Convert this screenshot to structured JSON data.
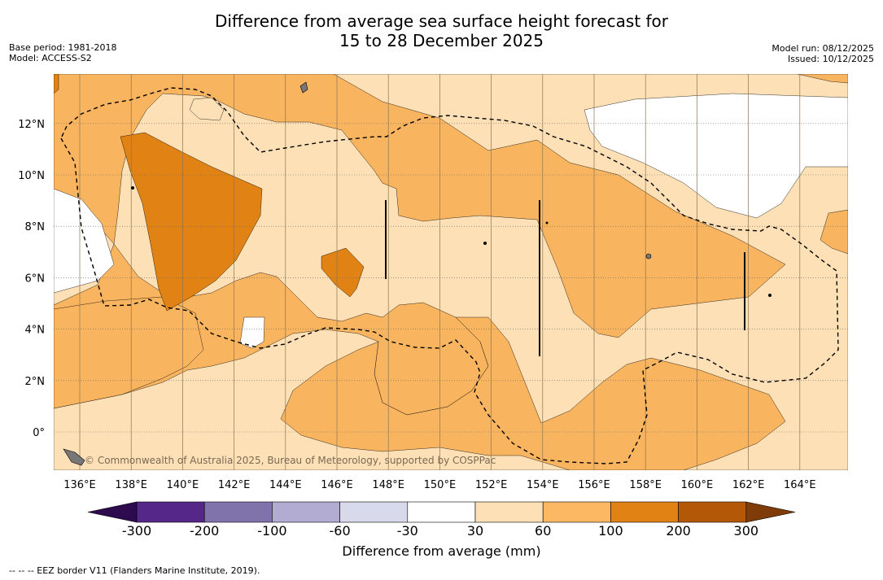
{
  "title_line1": "Difference from average sea surface height forecast for",
  "title_line2": "15 to 28 December 2025",
  "base_period": "Base period: 1981-2018",
  "model": "Model: ACCESS-S2",
  "model_run": "Model run: 08/12/2025",
  "issued": "Issued: 10/12/2025",
  "copyright": "© Commonwealth of Australia 2025, Bureau of Meteorology, supported by COSPPac",
  "lon_labels": [
    "136°E",
    "138°E",
    "140°E",
    "142°E",
    "144°E",
    "146°E",
    "148°E",
    "150°E",
    "152°E",
    "154°E",
    "156°E",
    "158°E",
    "160°E",
    "162°E",
    "164°E"
  ],
  "lat_labels": [
    "0°",
    "2°N",
    "4°N",
    "6°N",
    "8°N",
    "10°N",
    "12°N"
  ],
  "colorbar": {
    "title": "Difference from average (mm)",
    "tick_labels": [
      "-300",
      "-200",
      "-100",
      "-60",
      "-30",
      "30",
      "60",
      "100",
      "200",
      "300"
    ],
    "colors": [
      "#2e0b4f",
      "#542788",
      "#8073ac",
      "#b2abd2",
      "#d8daeb",
      "#ffffff",
      "#fde0b6",
      "#fdb863",
      "#e08214",
      "#b35806",
      "#7f3b08"
    ]
  },
  "legend_note": "-- -- -- EEZ border V11 (Flanders Marine Institute, 2019).",
  "colors": {
    "level_30_60": "#fde0b6",
    "level_60_100": "#f9b45f",
    "level_100_200": "#e08214",
    "below_30": "#ffffff"
  }
}
